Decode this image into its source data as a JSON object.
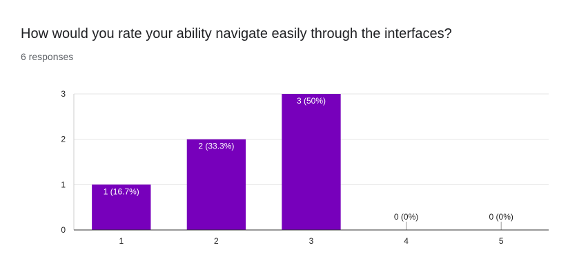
{
  "title": "How would you rate your ability navigate easily through the interfaces?",
  "subtitle": "6 responses",
  "chart_data": {
    "type": "bar",
    "categories": [
      "1",
      "2",
      "3",
      "4",
      "5"
    ],
    "values": [
      1,
      2,
      3,
      0,
      0
    ],
    "data_labels": [
      "1 (16.7%)",
      "2 (33.3%)",
      "3 (50%)",
      "0 (0%)",
      "0 (0%)"
    ],
    "y_ticks": [
      "0",
      "1",
      "2",
      "3"
    ],
    "ylim": [
      0,
      3
    ],
    "grid": true,
    "bar_color": "#7700bb"
  }
}
